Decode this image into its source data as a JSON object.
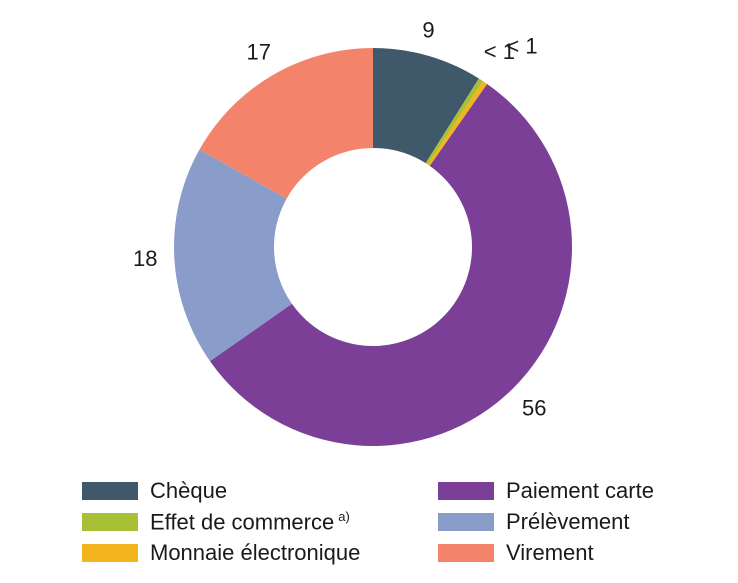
{
  "chart_data": {
    "type": "pie",
    "donut": true,
    "categories": [
      "Chèque",
      "Effet de commerce",
      "Monnaie électronique",
      "Paiement carte",
      "Prélèvement",
      "Virement"
    ],
    "values": [
      9,
      0.4,
      0.4,
      56,
      18,
      17
    ],
    "value_labels": [
      "9",
      "< 1",
      "< 1",
      "56",
      "18",
      "17"
    ],
    "colors": [
      "#3f596b",
      "#a8c035",
      "#f2b51e",
      "#7b3f97",
      "#8a9cc9",
      "#f4836c"
    ],
    "label_colors": [
      "#1a1a1a",
      "#a8c035",
      "#f2b51e",
      "#1a1a1a",
      "#1a1a1a",
      "#1a1a1a"
    ],
    "legend_placement": "bottom",
    "legend_note": "a)"
  }
}
